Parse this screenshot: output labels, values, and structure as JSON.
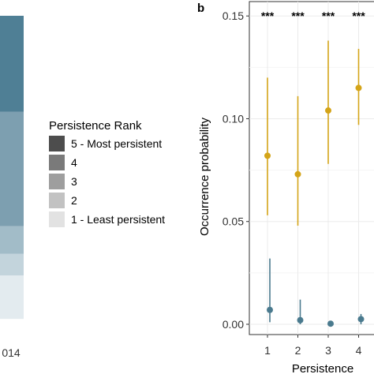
{
  "chart_data": [
    {
      "type": "bar",
      "subtype": "stacked-100",
      "x_tick_label": "014",
      "legend": {
        "title": "Persistence Rank",
        "placement": "right",
        "entries": [
          {
            "label": "5 - Most persistent",
            "color": "#4d4d4d"
          },
          {
            "label": "4",
            "color": "#7a7a7a"
          },
          {
            "label": "3",
            "color": "#9e9e9e"
          },
          {
            "label": "2",
            "color": "#c2c2c2"
          },
          {
            "label": "1 - Least persistent",
            "color": "#e2e2e2"
          }
        ]
      },
      "segments": [
        {
          "rank": "5 - Most persistent",
          "share": 0.31,
          "color": "#4f7f95"
        },
        {
          "rank": "4",
          "share": 0.37,
          "color": "#7d9fb0"
        },
        {
          "rank": "3",
          "share": 0.09,
          "color": "#a2bcc8"
        },
        {
          "rank": "2",
          "share": 0.07,
          "color": "#c3d4dc"
        },
        {
          "rank": "1 - Least persistent",
          "share": 0.14,
          "color": "#e3ebef"
        }
      ]
    },
    {
      "type": "scatter",
      "panel_label": "b",
      "xlabel": "Persistence",
      "ylabel": "Occurrence probability",
      "categories": [
        "1",
        "2",
        "3",
        "4"
      ],
      "ylim": [
        -0.005,
        0.157
      ],
      "yticks": [
        0.0,
        0.05,
        0.1,
        0.15
      ],
      "ytick_labels": [
        "0.00",
        "0.05",
        "0.10",
        "0.15"
      ],
      "grid": true,
      "significance": [
        "***",
        "***",
        "***",
        "***"
      ],
      "series": [
        {
          "color": "#d4a418",
          "values": [
            0.082,
            0.073,
            0.104,
            0.115
          ],
          "lower": [
            0.053,
            0.048,
            0.078,
            0.097
          ],
          "upper": [
            0.12,
            0.111,
            0.138,
            0.134
          ]
        },
        {
          "color": "#4a7a8e",
          "values": [
            0.007,
            0.002,
            0.0003,
            0.0025
          ],
          "lower": [
            0.001,
            0.0,
            0.0,
            0.0
          ],
          "upper": [
            0.032,
            0.012,
            0.001,
            0.005
          ]
        }
      ]
    }
  ]
}
